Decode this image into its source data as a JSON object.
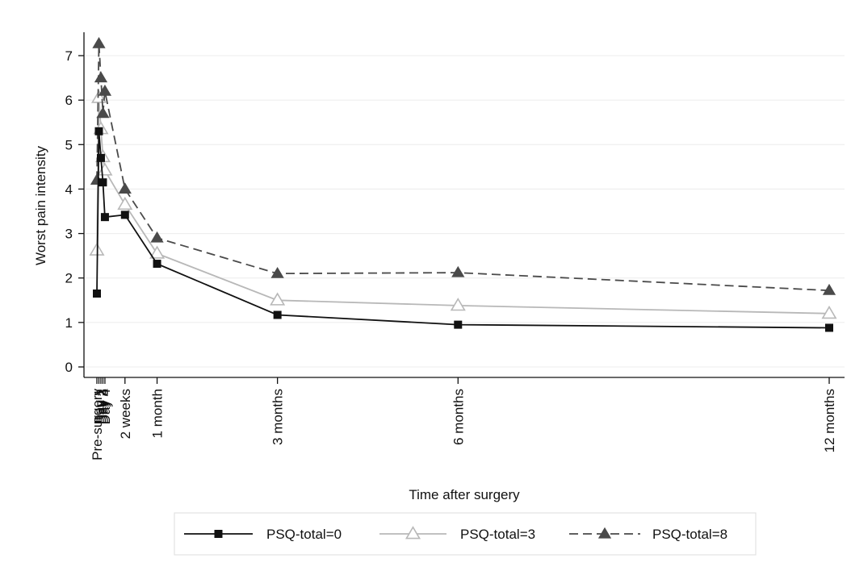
{
  "chart_data": {
    "type": "line",
    "xlabel": "Time after surgery",
    "ylabel": "Worst pain intensity",
    "ylim": [
      0,
      7
    ],
    "yticks": [
      0,
      1,
      2,
      3,
      4,
      5,
      6,
      7
    ],
    "grid": true,
    "legend_position": "bottom",
    "categories": [
      "Pre-surgery",
      "Day 1",
      "Day 2",
      "Day 3",
      "Day 4",
      "2 weeks",
      "1 month",
      "3 months",
      "6 months",
      "12 months"
    ],
    "x_days": [
      0,
      1,
      2,
      3,
      4,
      14,
      30,
      90,
      180,
      365
    ],
    "series": [
      {
        "name": "PSQ-total=0",
        "values": [
          1.65,
          5.3,
          4.7,
          4.15,
          3.37,
          3.42,
          2.32,
          1.17,
          0.95,
          0.88
        ],
        "color": "#111111",
        "marker": "square",
        "dash": "solid"
      },
      {
        "name": "PSQ-total=3",
        "values": [
          2.62,
          6.05,
          5.35,
          4.72,
          4.42,
          3.65,
          2.55,
          1.5,
          1.38,
          1.2
        ],
        "color": "#b8b8b8",
        "marker": "triangle-open",
        "dash": "solid"
      },
      {
        "name": "PSQ-total=8",
        "values": [
          4.2,
          7.27,
          6.5,
          5.7,
          6.2,
          4.0,
          2.9,
          2.1,
          2.12,
          1.72
        ],
        "color": "#4a4a4a",
        "marker": "triangle",
        "dash": "dashed"
      }
    ]
  }
}
